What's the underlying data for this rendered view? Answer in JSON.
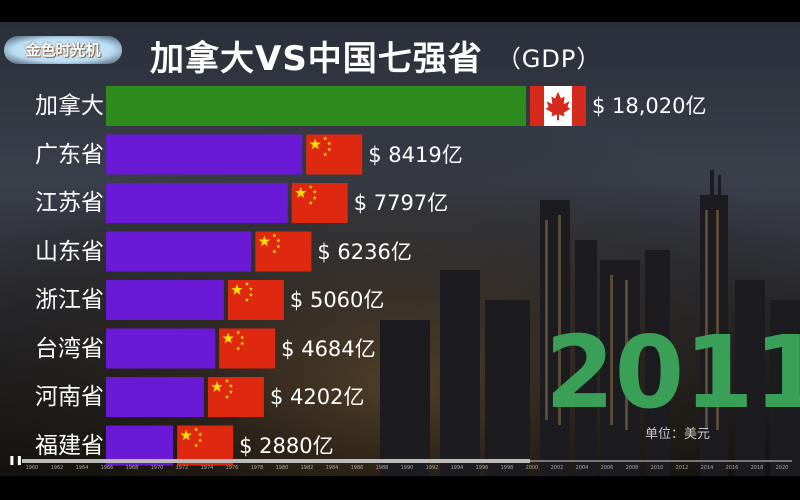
{
  "title": "加拿大VS中国七强省",
  "subtitle": "（GDP）",
  "brand": "金色时光机",
  "year": "2011",
  "unit_note": "单位：美元",
  "colors": {
    "canada_bar": "#2e8b1e",
    "province_bar": "#6a1ad4",
    "year_text": "#3aa058",
    "flag_red_china": "#de2910",
    "flag_star": "#ffde00",
    "flag_red_canada": "#d52b1e"
  },
  "timeline": {
    "play_icon": "pause-icon",
    "ticks": [
      "1960",
      "1962",
      "1964",
      "1966",
      "1968",
      "1970",
      "1972",
      "1974",
      "1976",
      "1978",
      "1980",
      "1982",
      "1984",
      "1986",
      "1988",
      "1990",
      "1992",
      "1994",
      "1996",
      "1998",
      "2000",
      "2002",
      "2004",
      "2006",
      "2008",
      "2010",
      "2012",
      "2014",
      "2016",
      "2018",
      "2020"
    ],
    "progress": 0.66
  },
  "chart_data": {
    "type": "bar",
    "orientation": "horizontal",
    "title": "加拿大VS中国七强省",
    "subtitle": "（GDP）",
    "year": "2011",
    "unit": "单位：美元",
    "categories": [
      "加拿大",
      "广东省",
      "江苏省",
      "山东省",
      "浙江省",
      "台湾省",
      "河南省",
      "福建省"
    ],
    "values": [
      18020,
      8419,
      7797,
      6236,
      5060,
      4684,
      4202,
      2880
    ],
    "value_labels": [
      "$ 18,020亿",
      "$ 8419亿",
      "$ 7797亿",
      "$ 6236亿",
      "$ 5060亿",
      "$ 4684亿",
      "$ 4202亿",
      "$ 2880亿"
    ],
    "flags": [
      "canada-flag-icon",
      "china-flag-icon",
      "china-flag-icon",
      "china-flag-icon",
      "china-flag-icon",
      "china-flag-icon",
      "china-flag-icon",
      "china-flag-icon"
    ],
    "bar_colors": [
      "#2e8b1e",
      "#6a1ad4",
      "#6a1ad4",
      "#6a1ad4",
      "#6a1ad4",
      "#6a1ad4",
      "#6a1ad4",
      "#6a1ad4"
    ]
  }
}
